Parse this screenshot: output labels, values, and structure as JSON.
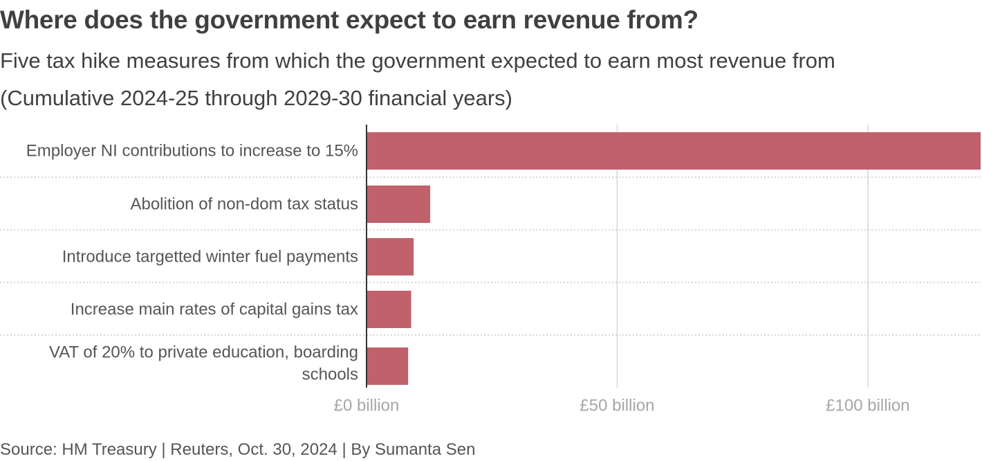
{
  "title": "Where does the government expect to earn revenue from?",
  "subtitle_line1": "Five tax hike measures from which the government expected to earn most revenue from",
  "subtitle_line2": "(Cumulative 2024-25 through 2029-30 financial years)",
  "source": "Source: HM Treasury | Reuters, Oct. 30, 2024 | By Sumanta Sen",
  "chart_data": {
    "type": "bar",
    "orientation": "horizontal",
    "categories": [
      [
        "Employer NI contributions to increase to 15%"
      ],
      [
        "Abolition of non-dom tax status"
      ],
      [
        "Introduce targetted winter fuel payments"
      ],
      [
        "Increase main rates of capital gains tax"
      ],
      [
        "VAT of 20% to private education, boarding",
        "schools"
      ]
    ],
    "values": [
      122.5,
      12.7,
      9.4,
      8.9,
      8.3
    ],
    "xlim": [
      0,
      122.5
    ],
    "ticks": [
      0,
      50,
      100
    ],
    "tick_labels": [
      "£0 billion",
      "£50 billion",
      "£100 billion"
    ],
    "grid": true,
    "bar_color": "#c0616b",
    "grid_color": "#d6d6d6",
    "separator_color": "#c8c8c8",
    "axis_color": "#333333",
    "tick_label_color": "#a6a6a6"
  }
}
